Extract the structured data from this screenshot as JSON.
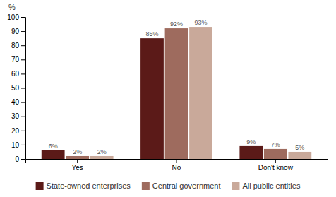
{
  "chart_data": {
    "type": "bar",
    "categories": [
      "Yes",
      "No",
      "Don't know"
    ],
    "series": [
      {
        "name": "State-owned enterprises",
        "color": "#5B1A18",
        "values": [
          6,
          85,
          9
        ],
        "value_labels": [
          "6%",
          "85%",
          "9%"
        ]
      },
      {
        "name": "Central government",
        "color": "#9E6B5E",
        "values": [
          2,
          92,
          7
        ],
        "value_labels": [
          "2%",
          "92%",
          "7%"
        ]
      },
      {
        "name": "All public entities",
        "color": "#C9A99A",
        "values": [
          2,
          93,
          5
        ],
        "value_labels": [
          "2%",
          "93%",
          "5%"
        ]
      }
    ],
    "ylabel": "%",
    "ylim": [
      0,
      100
    ],
    "yticks": [
      0,
      10,
      20,
      30,
      40,
      50,
      60,
      70,
      80,
      90,
      100
    ],
    "grid": false,
    "legend": "bottom",
    "data_labels": true
  }
}
